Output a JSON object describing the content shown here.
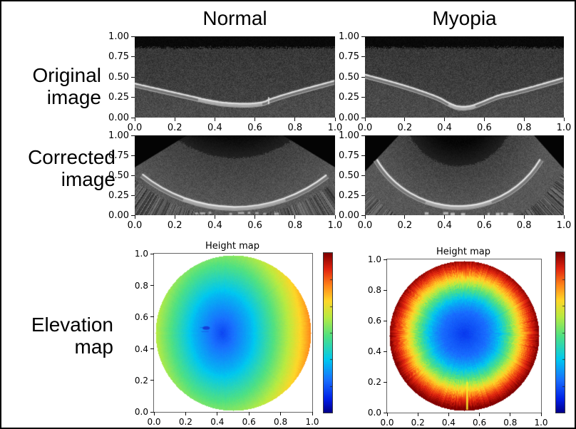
{
  "columns": {
    "left_title": "Normal",
    "right_title": "Myopia"
  },
  "rows": {
    "original": {
      "line1": "Original",
      "line2": "image"
    },
    "corrected": {
      "line1": "Corrected",
      "line2": "image"
    },
    "elevation": {
      "line1": "Elevation",
      "line2": "map"
    }
  },
  "axes": {
    "image_axes": {
      "x_ticks": [
        "0.0",
        "0.2",
        "0.4",
        "0.6",
        "0.8",
        "1.0"
      ],
      "y_ticks": [
        "1.00",
        "0.75",
        "0.50",
        "0.25",
        "0.00"
      ]
    },
    "map_axes": {
      "x_ticks": [
        "0.0",
        "0.2",
        "0.4",
        "0.6",
        "0.8",
        "1.0"
      ],
      "y_ticks": [
        "1.0",
        "0.8",
        "0.6",
        "0.4",
        "0.2",
        "0.0"
      ]
    }
  },
  "heightmap": {
    "title": "Height map",
    "colormap": "jet"
  },
  "colorbar": {
    "top_color": "#7f0000",
    "bottom_color": "#00008c"
  },
  "panels_summary": [
    {
      "row": "Original image",
      "column": "Normal",
      "content": "grayscale B-scan, bright interface curve dipping to ~0.17 at x~0.5"
    },
    {
      "row": "Original image",
      "column": "Myopia",
      "content": "grayscale B-scan, steeper V-shaped curve dipping to ~0.13 at x~0.47"
    },
    {
      "row": "Corrected image",
      "column": "Normal",
      "content": "fan-corrected grayscale scan with bright arc, dark dome above, striped corners"
    },
    {
      "row": "Corrected image",
      "column": "Myopia",
      "content": "fan-corrected grayscale scan with tighter bright arc, dark dome above, striped corners"
    },
    {
      "row": "Elevation map",
      "column": "Normal",
      "content": "circular jet height map: blue center left of middle, yellow-green rim, orange-red right edge"
    },
    {
      "row": "Elevation map",
      "column": "Myopia",
      "content": "circular jet height map: blue center, concentric rings to dark red rim, thin yellow radial line at bottom"
    }
  ]
}
